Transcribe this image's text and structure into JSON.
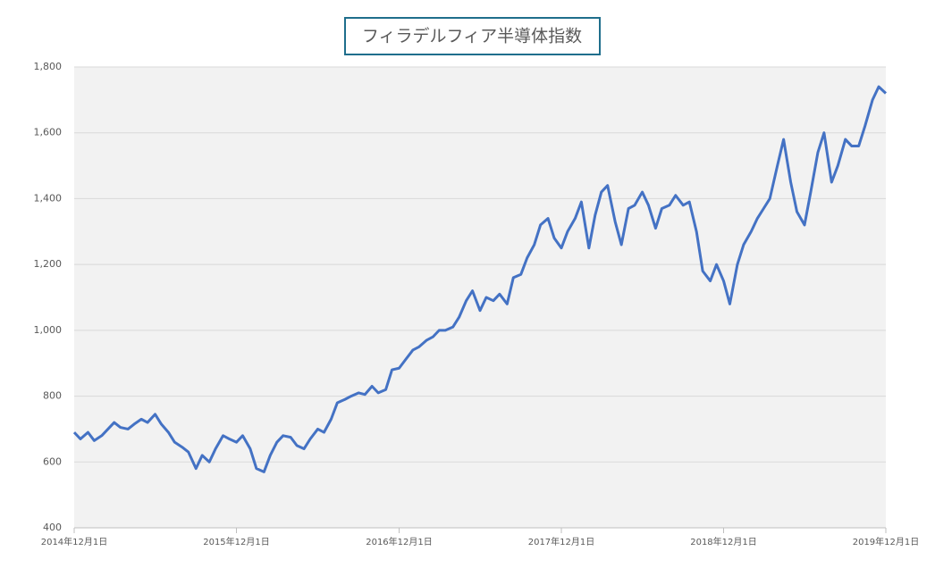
{
  "chart_data": {
    "type": "line",
    "title": "フィラデルフィア半導体指数",
    "x": [
      "2014-12-01",
      "2014-12-15",
      "2015-01-01",
      "2015-01-15",
      "2015-02-01",
      "2015-02-15",
      "2015-03-01",
      "2015-03-15",
      "2015-04-01",
      "2015-04-15",
      "2015-05-01",
      "2015-05-15",
      "2015-06-01",
      "2015-06-15",
      "2015-07-01",
      "2015-07-15",
      "2015-08-01",
      "2015-08-15",
      "2015-09-01",
      "2015-09-15",
      "2015-10-01",
      "2015-10-15",
      "2015-11-01",
      "2015-11-15",
      "2015-12-01",
      "2015-12-15",
      "2016-01-01",
      "2016-01-15",
      "2016-02-01",
      "2016-02-15",
      "2016-03-01",
      "2016-03-15",
      "2016-04-01",
      "2016-04-15",
      "2016-05-01",
      "2016-05-15",
      "2016-06-01",
      "2016-06-15",
      "2016-07-01",
      "2016-07-15",
      "2016-08-01",
      "2016-08-15",
      "2016-09-01",
      "2016-09-15",
      "2016-10-01",
      "2016-10-15",
      "2016-11-01",
      "2016-11-15",
      "2016-12-01",
      "2016-12-15",
      "2017-01-01",
      "2017-01-15",
      "2017-02-01",
      "2017-02-15",
      "2017-03-01",
      "2017-03-15",
      "2017-04-01",
      "2017-04-15",
      "2017-05-01",
      "2017-05-15",
      "2017-06-01",
      "2017-06-15",
      "2017-07-01",
      "2017-07-15",
      "2017-08-01",
      "2017-08-15",
      "2017-09-01",
      "2017-09-15",
      "2017-10-01",
      "2017-10-15",
      "2017-11-01",
      "2017-11-15",
      "2017-12-01",
      "2017-12-15",
      "2018-01-01",
      "2018-01-15",
      "2018-02-01",
      "2018-02-15",
      "2018-03-01",
      "2018-03-15",
      "2018-04-01",
      "2018-04-15",
      "2018-05-01",
      "2018-05-15",
      "2018-06-01",
      "2018-06-15",
      "2018-07-01",
      "2018-07-15",
      "2018-08-01",
      "2018-08-15",
      "2018-09-01",
      "2018-09-15",
      "2018-10-01",
      "2018-10-15",
      "2018-11-01",
      "2018-11-15",
      "2018-12-01",
      "2018-12-15",
      "2019-01-01",
      "2019-01-15",
      "2019-02-01",
      "2019-02-15",
      "2019-03-01",
      "2019-03-15",
      "2019-04-01",
      "2019-04-15",
      "2019-05-01",
      "2019-05-15",
      "2019-06-01",
      "2019-06-15",
      "2019-07-01",
      "2019-07-15",
      "2019-08-01",
      "2019-08-15",
      "2019-09-01",
      "2019-09-15",
      "2019-10-01",
      "2019-10-15",
      "2019-11-01",
      "2019-11-15",
      "2019-12-01"
    ],
    "series": [
      {
        "color": "#4472c4",
        "values": [
          690,
          670,
          690,
          665,
          680,
          700,
          720,
          705,
          700,
          715,
          730,
          720,
          745,
          715,
          690,
          660,
          645,
          630,
          580,
          620,
          600,
          640,
          680,
          670,
          660,
          680,
          640,
          580,
          570,
          620,
          660,
          680,
          675,
          650,
          640,
          670,
          700,
          690,
          730,
          780,
          790,
          800,
          810,
          805,
          830,
          810,
          820,
          880,
          885,
          910,
          940,
          950,
          970,
          980,
          1000,
          1000,
          1010,
          1040,
          1090,
          1120,
          1060,
          1100,
          1090,
          1110,
          1080,
          1160,
          1170,
          1220,
          1260,
          1320,
          1340,
          1280,
          1250,
          1300,
          1340,
          1390,
          1250,
          1350,
          1420,
          1440,
          1330,
          1260,
          1370,
          1380,
          1420,
          1380,
          1310,
          1370,
          1380,
          1410,
          1380,
          1390,
          1300,
          1180,
          1150,
          1200,
          1150,
          1080,
          1200,
          1260,
          1300,
          1340,
          1370,
          1400,
          1500,
          1580,
          1450,
          1360,
          1320,
          1420,
          1540,
          1600,
          1450,
          1500,
          1580,
          1560,
          1560,
          1620,
          1700,
          1740,
          1720
        ]
      }
    ],
    "xlim": [
      "2014-12-01",
      "2019-12-01"
    ],
    "xticks": [
      {
        "value": "2014-12-01",
        "label": "2014年12月1日"
      },
      {
        "value": "2015-12-01",
        "label": "2015年12月1日"
      },
      {
        "value": "2016-12-01",
        "label": "2016年12月1日"
      },
      {
        "value": "2017-12-01",
        "label": "2017年12月1日"
      },
      {
        "value": "2018-12-01",
        "label": "2018年12月1日"
      },
      {
        "value": "2019-12-01",
        "label": "2019年12月1日"
      }
    ],
    "ylim": [
      400,
      1800
    ],
    "yticks": [
      400,
      600,
      800,
      {
        "value": 1000,
        "label": "1,000"
      },
      {
        "value": 1200,
        "label": "1,200"
      },
      {
        "value": 1400,
        "label": "1,400"
      },
      {
        "value": 1600,
        "label": "1,600"
      },
      {
        "value": 1800,
        "label": "1,800"
      }
    ],
    "grid": true
  }
}
